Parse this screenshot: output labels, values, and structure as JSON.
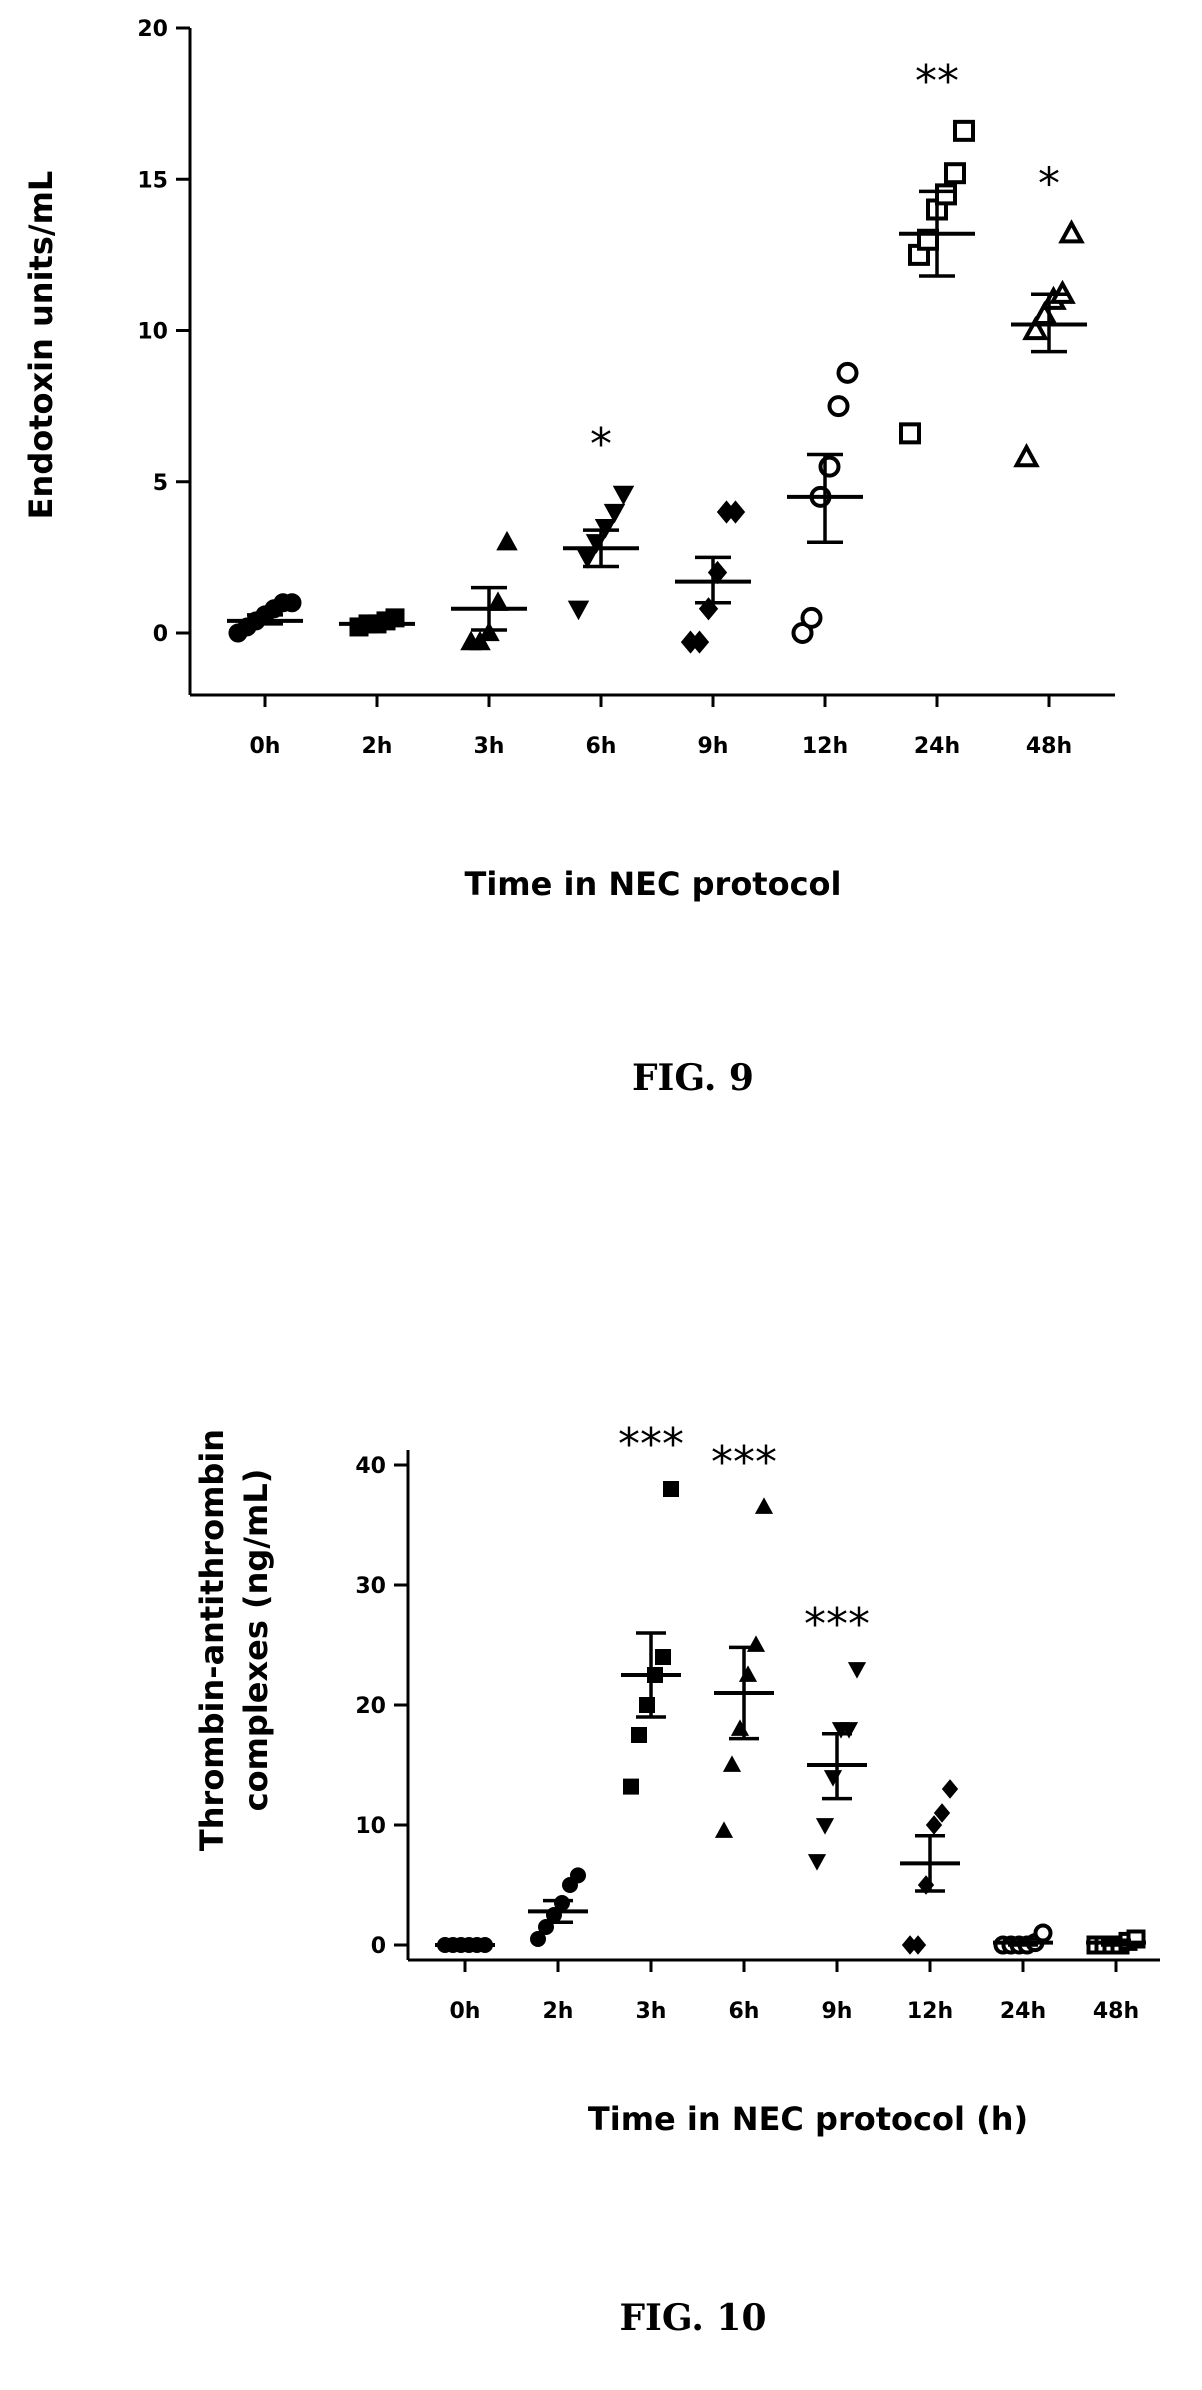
{
  "chart_data": [
    {
      "type": "scatter",
      "ylabel": "Endotoxin units/mL",
      "xlabel": "Time in NEC protocol",
      "caption": "FIG. 9",
      "categories": [
        "0h",
        "2h",
        "3h",
        "6h",
        "9h",
        "12h",
        "24h",
        "48h"
      ],
      "ylim": [
        0,
        20
      ],
      "yticks": [
        "0",
        "5",
        "10",
        "15",
        "20"
      ],
      "markers": [
        "filled-circle",
        "filled-square",
        "filled-triangle-up",
        "filled-triangle-down",
        "filled-diamond",
        "open-circle",
        "open-square",
        "open-triangle-up"
      ],
      "points": [
        [
          0.0,
          0.2,
          0.4,
          0.6,
          0.8,
          1.0,
          1.0
        ],
        [
          0.2,
          0.3,
          0.3,
          0.4,
          0.5
        ],
        [
          -0.3,
          -0.3,
          0.0,
          1.0,
          3.0
        ],
        [
          0.8,
          2.5,
          3.0,
          3.5,
          4.0,
          4.6
        ],
        [
          -0.3,
          -0.3,
          0.8,
          2.0,
          4.0,
          4.0
        ],
        [
          0.0,
          0.5,
          4.5,
          5.5,
          7.5,
          8.6
        ],
        [
          6.6,
          12.5,
          13.0,
          14.0,
          14.5,
          15.2,
          16.6
        ],
        [
          5.8,
          10.0,
          10.5,
          11.0,
          11.2,
          13.2
        ]
      ],
      "mean": [
        0.4,
        0.3,
        0.8,
        2.8,
        1.7,
        4.5,
        13.2,
        10.2
      ],
      "sem_low": [
        0.3,
        0.25,
        0.1,
        2.2,
        1.0,
        3.0,
        11.8,
        9.3
      ],
      "sem_high": [
        0.6,
        0.4,
        1.5,
        3.4,
        2.5,
        5.9,
        14.6,
        11.2
      ],
      "significance": [
        "",
        "",
        "",
        "*",
        "",
        "",
        "**",
        "*"
      ]
    },
    {
      "type": "scatter",
      "ylabel": "Thrombin-antithrombin complexes (ng/mL)",
      "xlabel": "Time in NEC protocol (h)",
      "caption": "FIG. 10",
      "categories": [
        "0h",
        "2h",
        "3h",
        "6h",
        "9h",
        "12h",
        "24h",
        "48h"
      ],
      "ylim": [
        0,
        40
      ],
      "yticks": [
        "0",
        "10",
        "20",
        "30",
        "40"
      ],
      "markers": [
        "filled-circle",
        "filled-circle",
        "filled-square",
        "filled-triangle-up",
        "filled-triangle-down",
        "filled-diamond",
        "open-circle",
        "open-square"
      ],
      "points": [
        [
          0,
          0,
          0,
          0,
          0,
          0
        ],
        [
          0.5,
          1.5,
          2.5,
          3.5,
          5.0,
          5.8
        ],
        [
          13.2,
          17.5,
          20.0,
          22.5,
          24.0,
          38.0
        ],
        [
          9.5,
          15.0,
          18.0,
          22.5,
          25.0,
          36.5
        ],
        [
          7.0,
          10.0,
          14.0,
          18.0,
          18.0,
          23.0
        ],
        [
          0,
          0,
          5.0,
          10.0,
          11.0,
          13.0
        ],
        [
          0,
          0,
          0,
          0,
          0.2,
          1.0
        ],
        [
          0,
          0,
          0,
          0,
          0.3,
          0.5
        ]
      ],
      "mean": [
        0,
        2.8,
        22.5,
        21.0,
        15.0,
        6.8,
        0.2,
        0.2
      ],
      "sem_low": [
        0,
        1.9,
        19.0,
        17.2,
        12.2,
        4.5,
        0,
        0
      ],
      "sem_high": [
        0,
        3.7,
        26.0,
        24.8,
        17.6,
        9.1,
        0.5,
        0.4
      ],
      "significance": [
        "",
        "",
        "***",
        "***",
        "***",
        "",
        "",
        ""
      ]
    }
  ]
}
